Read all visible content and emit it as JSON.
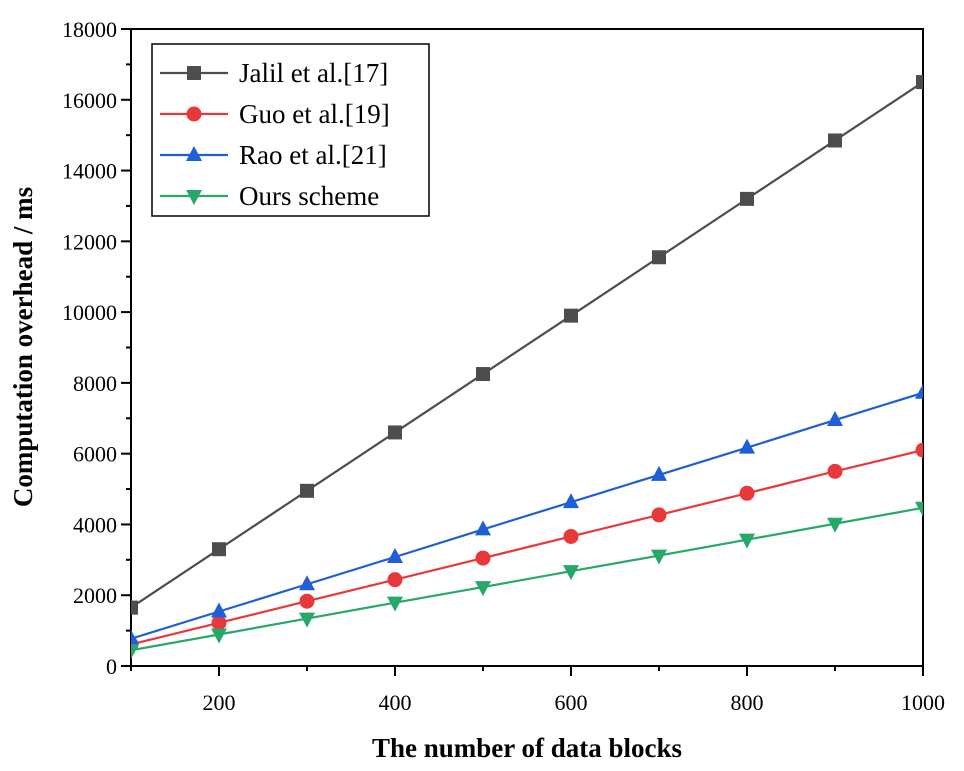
{
  "chart_data": {
    "type": "line",
    "title": "",
    "xlabel": "The number of data blocks",
    "ylabel": "Computation overhead / ms",
    "xlim": [
      100,
      1000
    ],
    "ylim": [
      0,
      18000
    ],
    "x": [
      100,
      200,
      300,
      400,
      500,
      600,
      700,
      800,
      900,
      1000
    ],
    "xticks": [
      200,
      400,
      600,
      800,
      1000
    ],
    "xtick_labels": [
      "200",
      "400",
      "600",
      "800",
      "1000"
    ],
    "yticks": [
      0,
      2000,
      4000,
      6000,
      8000,
      10000,
      12000,
      14000,
      16000,
      18000
    ],
    "ytick_labels": [
      "0",
      "2000",
      "4000",
      "6000",
      "8000",
      "10000",
      "12000",
      "14000",
      "16000",
      "18000"
    ],
    "legend_position": "top-left",
    "grid": false,
    "series": [
      {
        "name": "Jalil et al.[17]",
        "marker": "square",
        "color": "#4d4d4d",
        "values": [
          1650,
          3300,
          4950,
          6600,
          8250,
          9900,
          11550,
          13200,
          14850,
          16500
        ]
      },
      {
        "name": "Guo et al.[19]",
        "marker": "circle",
        "color": "#e8383a",
        "values": [
          610,
          1220,
          1830,
          2440,
          3050,
          3660,
          4270,
          4880,
          5500,
          6100
        ]
      },
      {
        "name": "Rao et al.[21]",
        "marker": "triangle-up",
        "color": "#1f5fd6",
        "values": [
          770,
          1540,
          2310,
          3080,
          3860,
          4630,
          5400,
          6170,
          6950,
          7720
        ]
      },
      {
        "name": "Ours scheme",
        "marker": "triangle-down",
        "color": "#27a86a",
        "values": [
          445,
          890,
          1340,
          1790,
          2230,
          2680,
          3120,
          3570,
          4020,
          4470
        ]
      }
    ]
  }
}
